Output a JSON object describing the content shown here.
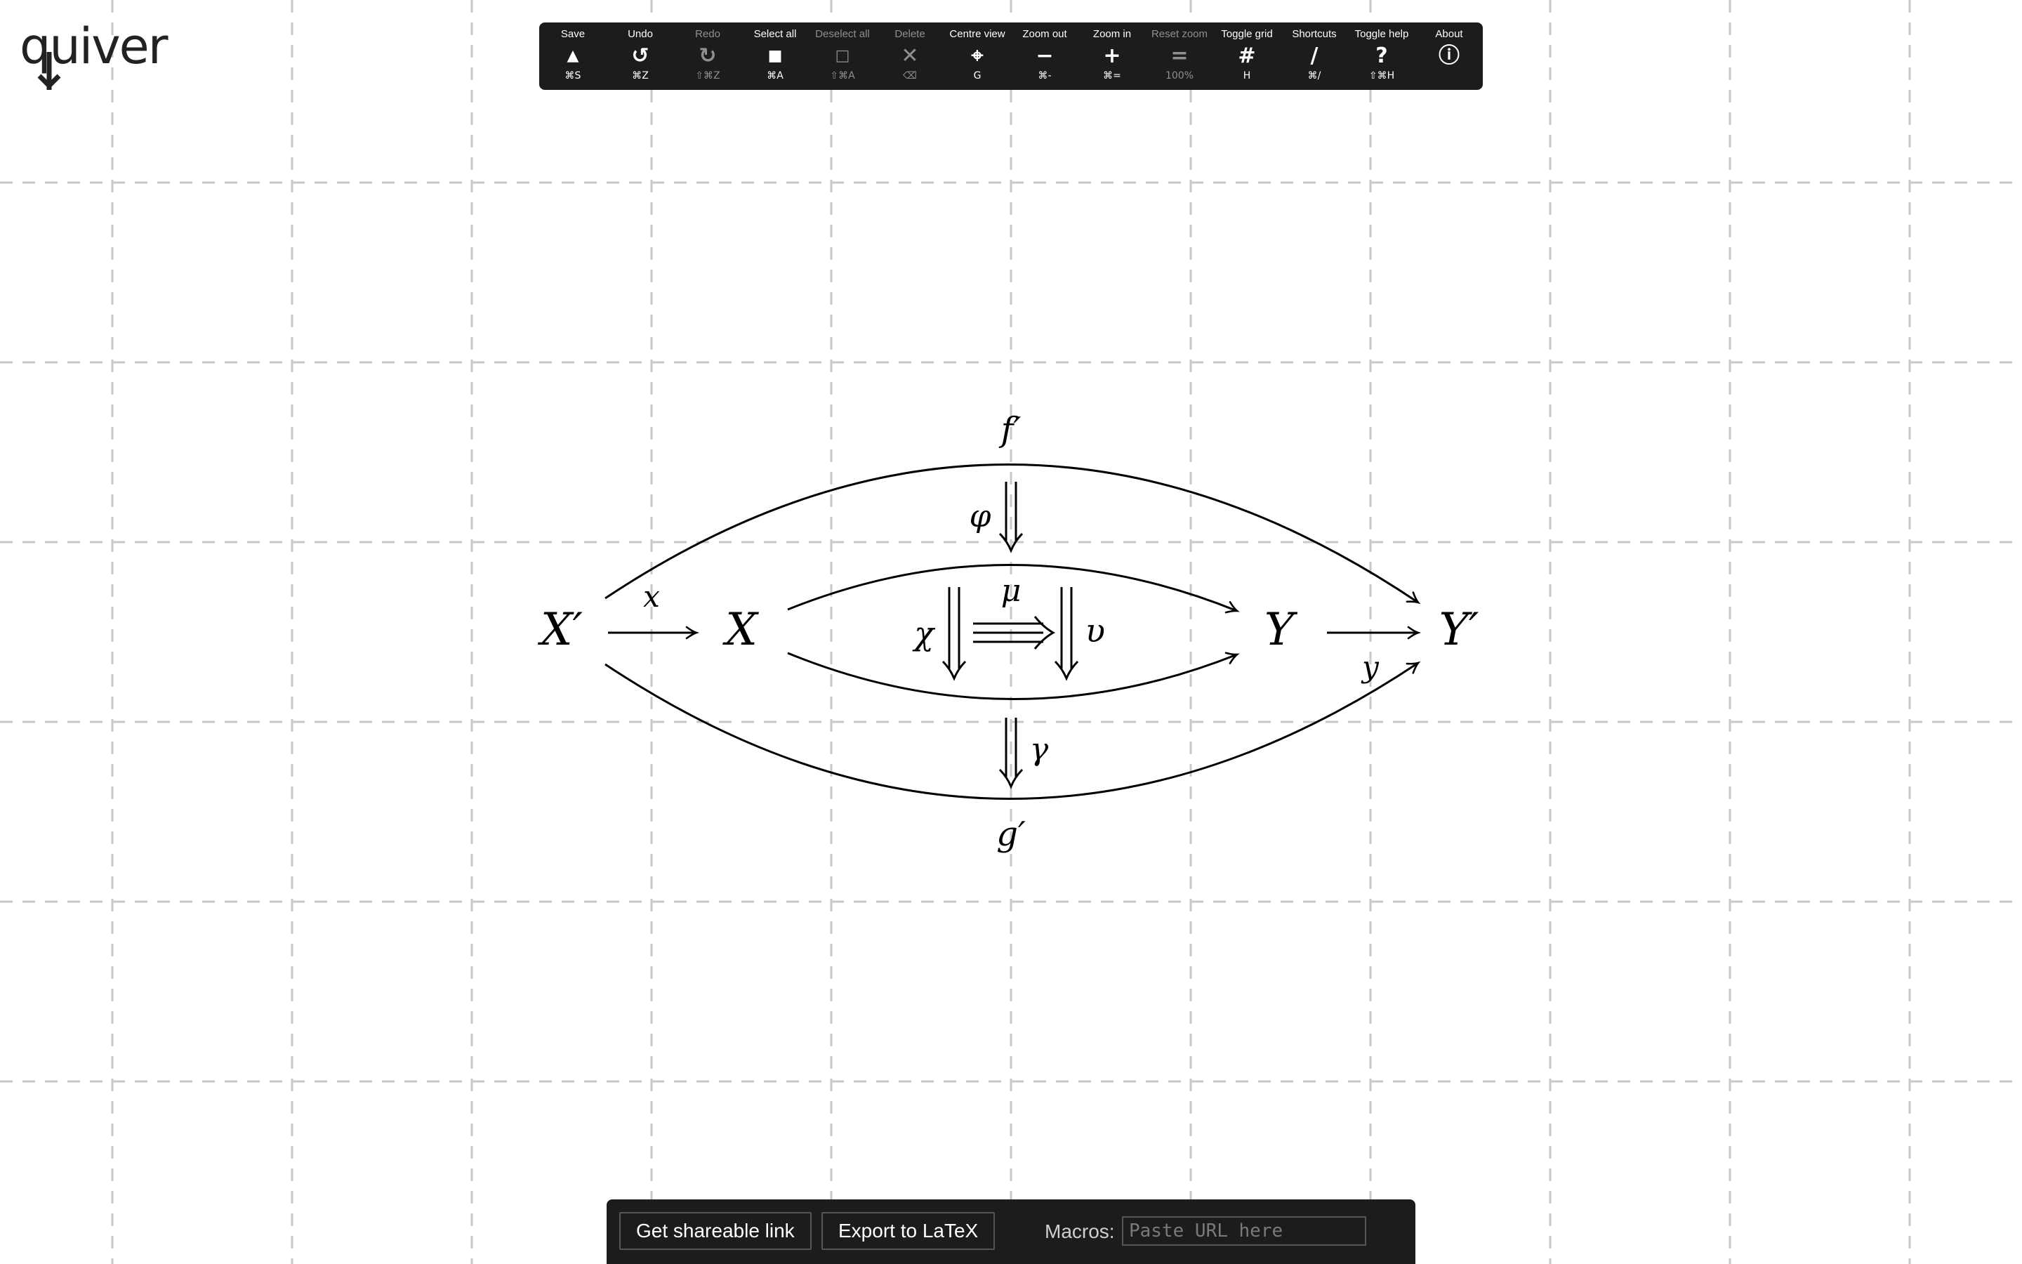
{
  "app": {
    "logo_text": "quiver"
  },
  "toolbar": {
    "items": [
      {
        "label": "Save",
        "glyph": "▲",
        "shortcut": "⌘S",
        "icon": "save-icon",
        "enabled": true
      },
      {
        "label": "Undo",
        "glyph": "↺",
        "shortcut": "⌘Z",
        "icon": "undo-icon",
        "enabled": true
      },
      {
        "label": "Redo",
        "glyph": "↻",
        "shortcut": "⇧⌘Z",
        "icon": "redo-icon",
        "enabled": false
      },
      {
        "label": "Select all",
        "glyph": "■",
        "shortcut": "⌘A",
        "icon": "select-all-icon",
        "enabled": true
      },
      {
        "label": "Deselect all",
        "glyph": "□",
        "shortcut": "⇧⌘A",
        "icon": "deselect-all-icon",
        "enabled": false
      },
      {
        "label": "Delete",
        "glyph": "✕",
        "shortcut": "⌫",
        "icon": "delete-icon",
        "enabled": false
      },
      {
        "label": "Centre view",
        "glyph": "⌖",
        "shortcut": "G",
        "icon": "centre-view-icon",
        "enabled": true
      },
      {
        "label": "Zoom out",
        "glyph": "−",
        "shortcut": "⌘-",
        "icon": "zoom-out-icon",
        "enabled": true
      },
      {
        "label": "Zoom in",
        "glyph": "+",
        "shortcut": "⌘=",
        "icon": "zoom-in-icon",
        "enabled": true
      },
      {
        "label": "Reset zoom",
        "glyph": "=",
        "shortcut": "100%",
        "icon": "reset-zoom-icon",
        "enabled": false
      },
      {
        "label": "Toggle grid",
        "glyph": "#",
        "shortcut": "H",
        "icon": "grid-icon",
        "enabled": true
      },
      {
        "label": "Shortcuts",
        "glyph": "/",
        "shortcut": "⌘/",
        "icon": "shortcuts-icon",
        "enabled": true
      },
      {
        "label": "Toggle help",
        "glyph": "?",
        "shortcut": "⇧⌘H",
        "icon": "help-icon",
        "enabled": true
      },
      {
        "label": "About",
        "glyph": "ⓘ",
        "shortcut": "",
        "icon": "info-icon",
        "enabled": true
      }
    ]
  },
  "diagram": {
    "objects": {
      "X_prime": "X′",
      "X": "X",
      "Y": "Y",
      "Y_prime": "Y′"
    },
    "labels": {
      "f_prime": "f′",
      "g_prime": "g′",
      "x": "x",
      "y": "y",
      "phi": "φ",
      "gamma": "γ",
      "chi": "χ",
      "upsilon": "υ",
      "mu": "μ"
    }
  },
  "panel": {
    "share_button": "Get shareable link",
    "export_button": "Export to LaTeX",
    "macros_label": "Macros:",
    "macros_placeholder": "Paste URL here"
  },
  "colors": {
    "toolbar_bg": "#1c1c1c",
    "grid_line": "#c8c8c8",
    "disabled_text": "#8f8f8f"
  }
}
